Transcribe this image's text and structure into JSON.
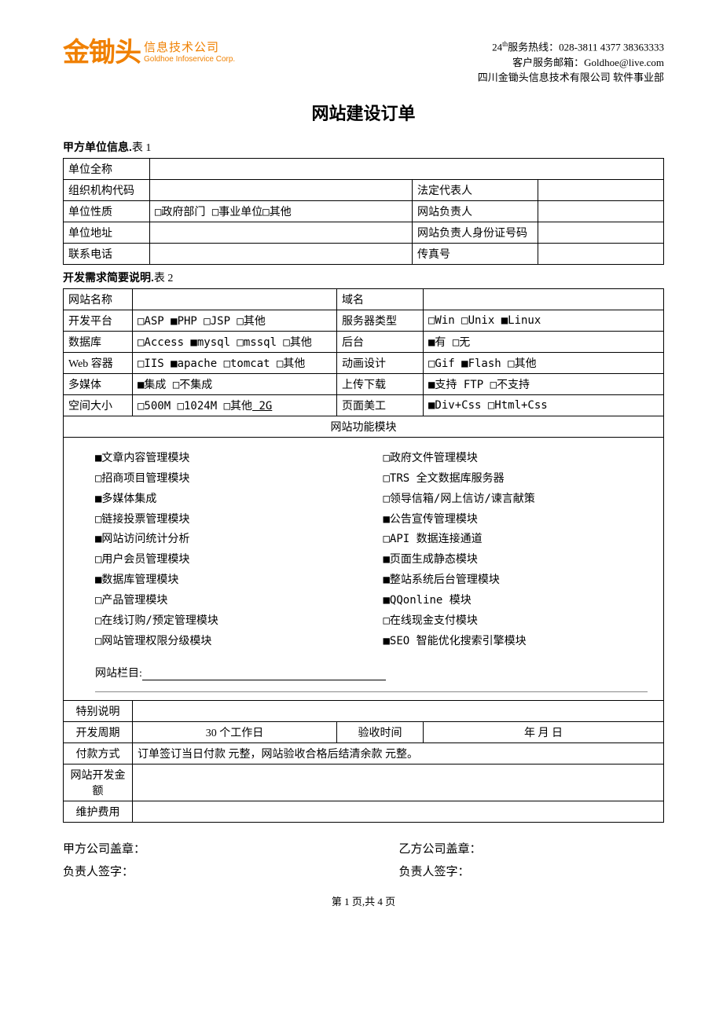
{
  "header": {
    "logo_brand": "金锄头",
    "logo_sub_cn": "信息技术公司",
    "logo_sub_en": "Goldhoe Infoservice Corp.",
    "hotline_label": "24",
    "hotline_sup": "th",
    "hotline_text": "服务热线：028-3811 4377 38363333",
    "email_text": "客户服务邮箱：Goldhoe@live.com",
    "dept_text": "四川金锄头信息技术有限公司 软件事业部"
  },
  "doc_title": "网站建设订单",
  "section1": {
    "title": "甲方单位信息.",
    "table_no": "表 1",
    "rows": {
      "unit_full": "单位全称",
      "org_code": "组织机构代码",
      "legal_rep": "法定代表人",
      "unit_type": "单位性质",
      "unit_type_opts": "□政府部门 □事业单位□其他",
      "site_owner": "网站负责人",
      "unit_addr": "单位地址",
      "owner_id": "网站负责人身份证号码",
      "phone": "联系电话",
      "fax": "传真号"
    }
  },
  "section2": {
    "title": "开发需求简要说明.",
    "table_no": "表 2",
    "labels": {
      "site_name": "网站名称",
      "domain": "域名",
      "platform": "开发平台",
      "platform_opts": "□ASP  ■PHP  □JSP  □其他",
      "server_type": "服务器类型",
      "server_opts": "□Win  □Unix  ■Linux",
      "database": "数据库",
      "database_opts": "□Access ■mysql □mssql □其他",
      "backend": "后台",
      "backend_opts": "■有   □无",
      "web_container": "Web 容器",
      "container_opts": "□IIS ■apache □tomcat □其他",
      "anim": "动画设计",
      "anim_opts": "□Gif  ■Flash □其他",
      "multimedia": "多媒体",
      "multimedia_opts": "■集成   □不集成",
      "updown": "上传下载",
      "updown_opts": "■支持 FTP  □不支持",
      "space": "空间大小",
      "space_opts": "□500M  □1024M  □其他",
      "space_other": " 2G ",
      "ui": "页面美工",
      "ui_opts": "■Div+Css   □Html+Css",
      "modules_header": "网站功能模块"
    },
    "modules_left": [
      "■文章内容管理模块",
      "□招商项目管理模块",
      "■多媒体集成",
      "□链接投票管理模块",
      "■网站访问统计分析",
      "□用户会员管理模块",
      "■数据库管理模块",
      "□产品管理模块",
      "□在线订购/预定管理模块",
      "□网站管理权限分级模块"
    ],
    "modules_right": [
      "□政府文件管理模块",
      "□TRS 全文数据库服务器",
      "□领导信箱/网上信访/谏言献策",
      "■公告宣传管理模块",
      "□API 数据连接通道",
      "■页面生成静态模块",
      "■整站系统后台管理模块",
      "■QQonline 模块",
      "□在线现金支付模块",
      "■SEO 智能优化搜索引擎模块"
    ],
    "columns_label": "网站栏目:",
    "bottom": {
      "special": "特别说明",
      "dev_period": "开发周期",
      "dev_period_val": "30 个工作日",
      "accept_time": "验收时间",
      "accept_time_val": "年    月   日",
      "pay_method": "付款方式",
      "pay_method_val": "订单签订当日付款        元整，网站验收合格后结清余款      元整。",
      "dev_cost": "网站开发金额",
      "maint_cost": "维护费用"
    }
  },
  "signatures": {
    "a_seal": "甲方公司盖章：",
    "b_seal": "乙方公司盖章：",
    "a_sign": "负责人签字：",
    "b_sign": "负责人签字："
  },
  "footer": "第 1 页,共 4 页"
}
